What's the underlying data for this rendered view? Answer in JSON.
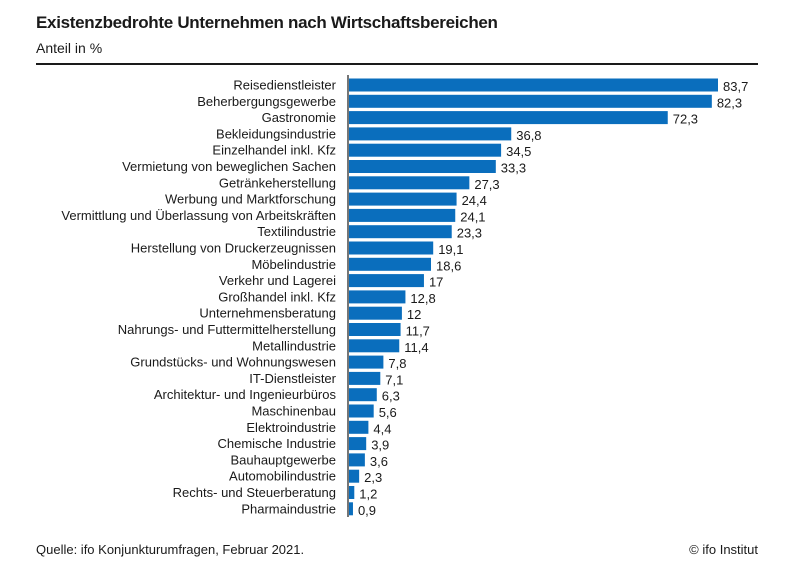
{
  "chart_data": {
    "type": "bar",
    "orientation": "horizontal",
    "title": "Existenzbedrohte Unternehmen nach Wirtschaftsbereichen",
    "subtitle": "Anteil in %",
    "categories": [
      "Reisedienstleister",
      "Beherbergungsgewerbe",
      "Gastronomie",
      "Bekleidungsindustrie",
      "Einzelhandel inkl. Kfz",
      "Vermietung von beweglichen Sachen",
      "Getränkeherstellung",
      "Werbung und Marktforschung",
      "Vermittlung und Überlassung von Arbeitskräften",
      "Textilindustrie",
      "Herstellung von Druckerzeugnissen",
      "Möbelindustrie",
      "Verkehr und Lagerei",
      "Großhandel inkl. Kfz",
      "Unternehmensberatung",
      "Nahrungs- und Futtermittelherstellung",
      "Metallindustrie",
      "Grundstücks- und Wohnungswesen",
      "IT-Dienstleister",
      "Architektur- und Ingenieurbüros",
      "Maschinenbau",
      "Elektroindustrie",
      "Chemische Industrie",
      "Bauhauptgewerbe",
      "Automobilindustrie",
      "Rechts- und Steuerberatung",
      "Pharmaindustrie"
    ],
    "values": [
      83.7,
      82.3,
      72.3,
      36.8,
      34.5,
      33.3,
      27.3,
      24.4,
      24.1,
      23.3,
      19.1,
      18.6,
      17,
      12.8,
      12,
      11.7,
      11.4,
      7.8,
      7.1,
      6.3,
      5.6,
      4.4,
      3.9,
      3.6,
      2.3,
      1.2,
      0.9
    ],
    "data_labels": [
      "83,7",
      "82,3",
      "72,3",
      "36,8",
      "34,5",
      "33,3",
      "27,3",
      "24,4",
      "24,1",
      "23,3",
      "19,1",
      "18,6",
      "17",
      "12,8",
      "12",
      "11,7",
      "11,4",
      "7,8",
      "7,1",
      "6,3",
      "5,6",
      "4,4",
      "3,9",
      "3,6",
      "2,3",
      "1,2",
      "0,9"
    ],
    "xlim": [
      0,
      83.7
    ],
    "grid": false,
    "bar_color": "#0a6ebd"
  },
  "footer": {
    "source": "Quelle: ifo Konjunkturumfragen, Februar 2021.",
    "copyright": "© ifo Institut"
  }
}
